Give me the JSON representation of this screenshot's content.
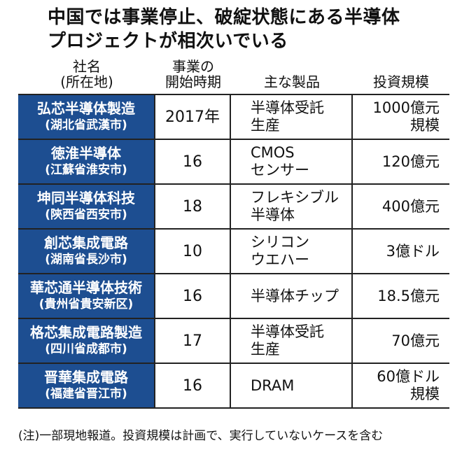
{
  "title": {
    "line1": "中国では事業停止、破綻状態にある半導体",
    "line2": "プロジェクトが相次いでいる"
  },
  "headers": {
    "company_line1": "社名",
    "company_line2": "(所在地)",
    "year_line1": "事業の",
    "year_line2": "開始時期",
    "product": "主な製品",
    "investment": "投資規模"
  },
  "rows": [
    {
      "name": "弘芯半導体製造",
      "location": "(湖北省武漢市)",
      "year": "2017年",
      "product_line1": "半導体受託",
      "product_line2": "生産",
      "investment_line1": "1000億元",
      "investment_line2": "規模"
    },
    {
      "name": "徳淮半導体",
      "location": "(江蘇省淮安市)",
      "year": "16",
      "product_line1": "CMOS",
      "product_line2": "センサー",
      "investment_line1": "120億元",
      "investment_line2": ""
    },
    {
      "name": "坤同半導体科技",
      "location": "(陝西省西安市)",
      "year": "18",
      "product_line1": "フレキシブル",
      "product_line2": "半導体",
      "investment_line1": "400億元",
      "investment_line2": ""
    },
    {
      "name": "創芯集成電路",
      "location": "(湖南省長沙市)",
      "year": "10",
      "product_line1": "シリコン",
      "product_line2": "ウエハー",
      "investment_line1": "3億ドル",
      "investment_line2": ""
    },
    {
      "name": "華芯通半導体技術",
      "location": "(貴州省貴安新区)",
      "year": "16",
      "product_line1": "半導体チップ",
      "product_line2": "",
      "investment_line1": "18.5億元",
      "investment_line2": ""
    },
    {
      "name": "格芯集成電路製造",
      "location": "(四川省成都市)",
      "year": "17",
      "product_line1": "半導体受託",
      "product_line2": "生産",
      "investment_line1": "70億元",
      "investment_line2": ""
    },
    {
      "name": "晋華集成電路",
      "location": "(福建省晋江市)",
      "year": "16",
      "product_line1": "DRAM",
      "product_line2": "",
      "investment_line1": "60億ドル",
      "investment_line2": "規模"
    }
  ],
  "note": "(注)一部現地報道。投資規模は計画で、実行していないケースを含む",
  "colors": {
    "company_cell_bg": "#1d4e91",
    "company_cell_text": "#ffffff",
    "border": "#222222"
  }
}
